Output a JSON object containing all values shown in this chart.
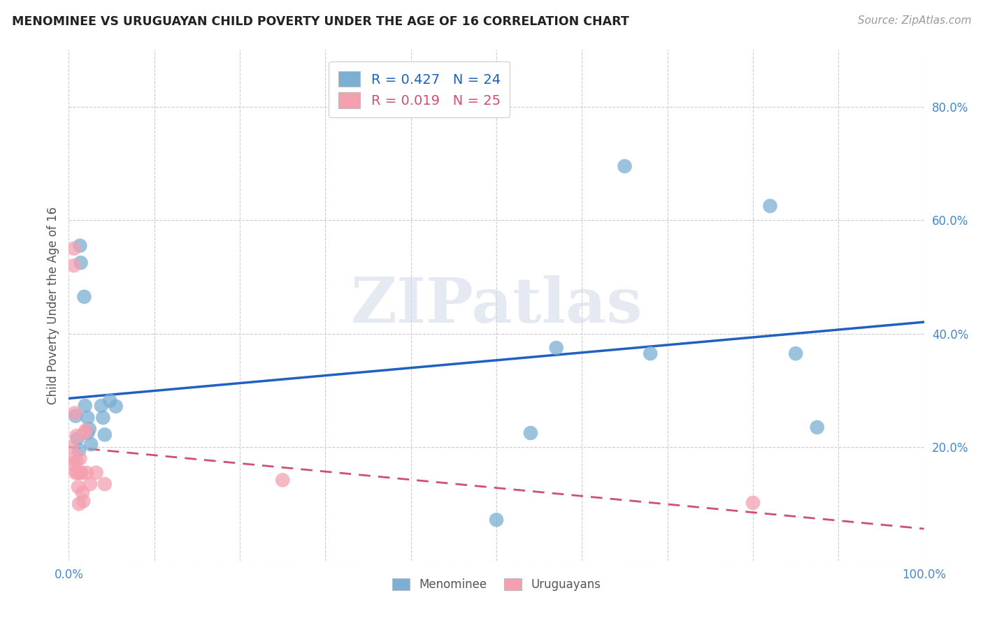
{
  "title": "MENOMINEE VS URUGUAYAN CHILD POVERTY UNDER THE AGE OF 16 CORRELATION CHART",
  "source": "Source: ZipAtlas.com",
  "ylabel": "Child Poverty Under the Age of 16",
  "xlim": [
    0.0,
    1.0
  ],
  "ylim": [
    0.0,
    0.9
  ],
  "menominee_x": [
    0.008,
    0.01,
    0.012,
    0.013,
    0.014,
    0.018,
    0.019,
    0.022,
    0.022,
    0.024,
    0.026,
    0.038,
    0.04,
    0.042,
    0.048,
    0.055,
    0.5,
    0.54,
    0.57,
    0.65,
    0.68,
    0.82,
    0.85,
    0.875
  ],
  "menominee_y": [
    0.255,
    0.215,
    0.195,
    0.555,
    0.525,
    0.465,
    0.273,
    0.225,
    0.252,
    0.232,
    0.205,
    0.273,
    0.252,
    0.222,
    0.282,
    0.272,
    0.072,
    0.225,
    0.375,
    0.695,
    0.365,
    0.625,
    0.365,
    0.235
  ],
  "uruguayan_x": [
    0.004,
    0.005,
    0.006,
    0.006,
    0.007,
    0.007,
    0.008,
    0.009,
    0.009,
    0.01,
    0.011,
    0.012,
    0.013,
    0.014,
    0.015,
    0.016,
    0.017,
    0.018,
    0.02,
    0.021,
    0.025,
    0.032,
    0.042,
    0.25,
    0.8
  ],
  "uruguayan_y": [
    0.2,
    0.17,
    0.55,
    0.52,
    0.26,
    0.18,
    0.155,
    0.22,
    0.175,
    0.155,
    0.13,
    0.1,
    0.18,
    0.155,
    0.155,
    0.12,
    0.105,
    0.225,
    0.23,
    0.155,
    0.135,
    0.155,
    0.135,
    0.142,
    0.102
  ],
  "menominee_color": "#7bafd4",
  "uruguayan_color": "#f4a0b0",
  "menominee_line_color": "#2060c0",
  "uruguayan_line_color": "#d05070",
  "R_menominee": 0.427,
  "N_menominee": 24,
  "R_uruguayan": 0.019,
  "N_uruguayan": 25,
  "background_color": "#ffffff",
  "watermark": "ZIPatlas",
  "menominee_label": "Menominee",
  "uruguayan_label": "Uruguayans"
}
